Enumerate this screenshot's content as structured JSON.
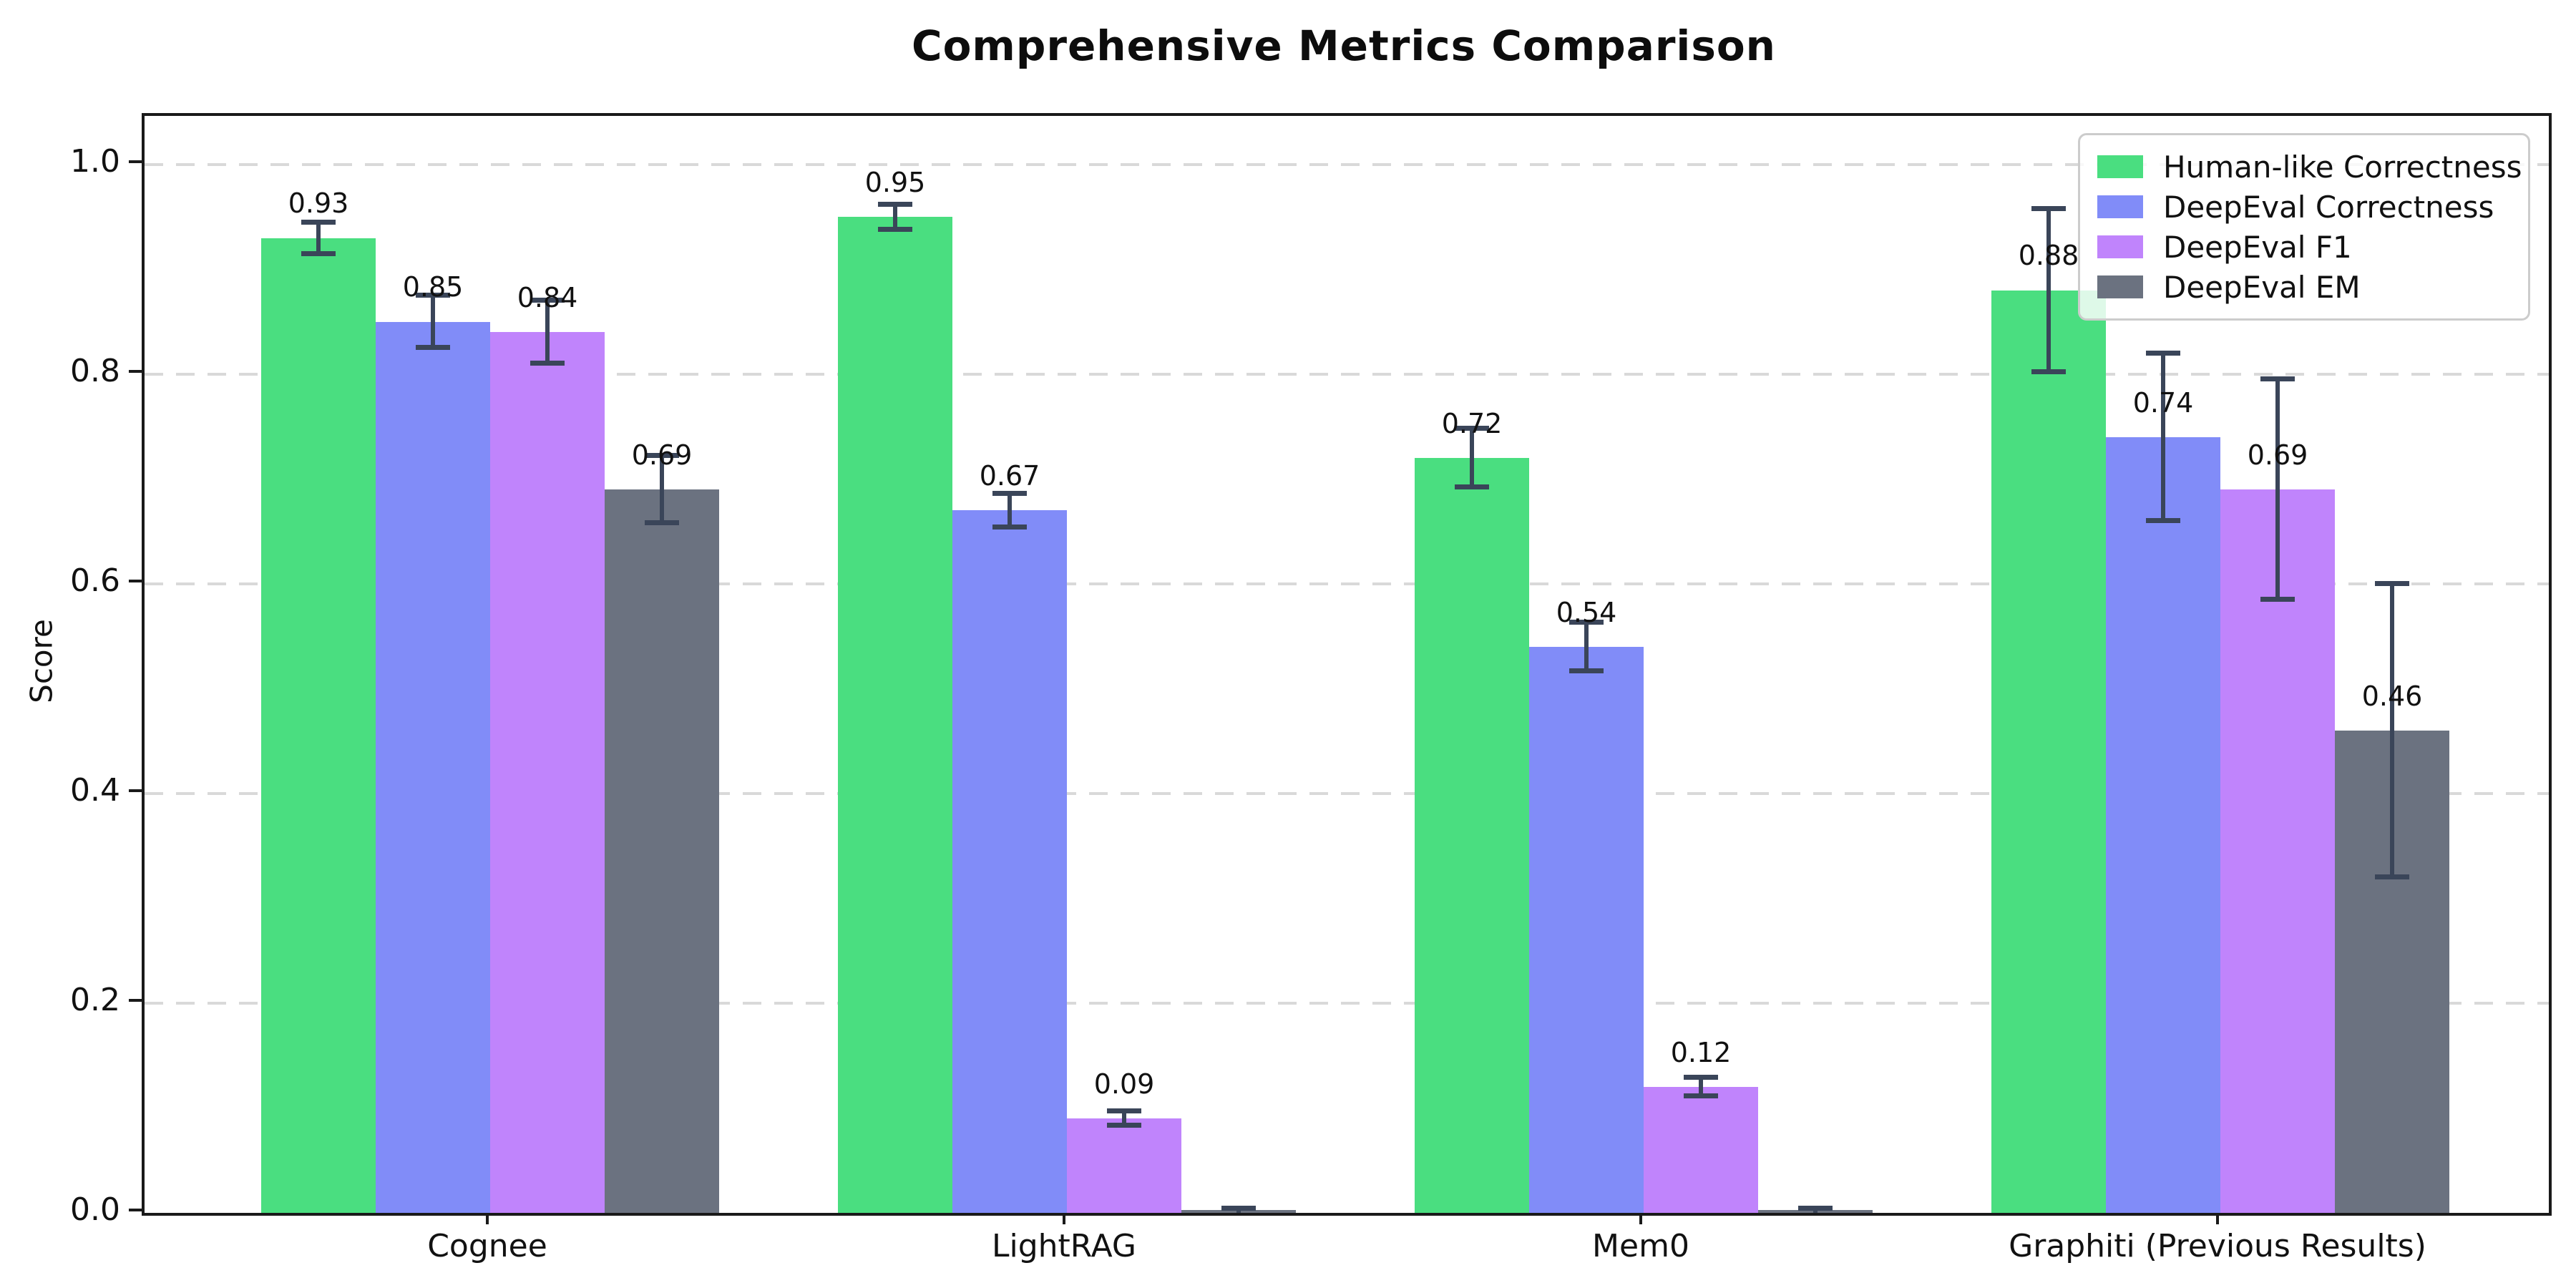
{
  "chart_data": {
    "type": "bar",
    "title": "Comprehensive Metrics Comparison",
    "xlabel": "",
    "ylabel": "Score",
    "categories": [
      "Cognee",
      "LightRAG",
      "Mem0",
      "Graphiti (Previous Results)"
    ],
    "series": [
      {
        "name": "Human-like Correctness",
        "color": "#4ade80",
        "values": [
          0.93,
          0.95,
          0.72,
          0.88
        ],
        "errors": [
          0.015,
          0.012,
          0.028,
          0.078
        ],
        "labels": [
          "0.93",
          "0.95",
          "0.72",
          "0.88"
        ]
      },
      {
        "name": "DeepEval Correctness",
        "color": "#818cf8",
        "values": [
          0.85,
          0.67,
          0.54,
          0.74
        ],
        "errors": [
          0.025,
          0.016,
          0.023,
          0.08
        ],
        "labels": [
          "0.85",
          "0.67",
          "0.54",
          "0.74"
        ]
      },
      {
        "name": "DeepEval F1",
        "color": "#c084fc",
        "values": [
          0.84,
          0.09,
          0.12,
          0.69
        ],
        "errors": [
          0.03,
          0.007,
          0.009,
          0.105
        ],
        "labels": [
          "0.84",
          "0.09",
          "0.12",
          "0.69"
        ]
      },
      {
        "name": "DeepEval EM",
        "color": "#6b7280",
        "values": [
          0.69,
          0.0,
          0.0,
          0.46
        ],
        "errors": [
          0.032,
          0.004,
          0.004,
          0.14
        ],
        "labels": [
          "0.69",
          "",
          "",
          "0.46"
        ]
      }
    ],
    "yticks": [
      "0.0",
      "0.2",
      "0.4",
      "0.6",
      "0.8",
      "1.0"
    ],
    "ylim": [
      0,
      1.05
    ],
    "grid": "horizontal dashed",
    "legend_position": "upper right",
    "colors": {
      "error_bar": "#3a4559",
      "gridline": "#d9d9d9",
      "spine": "#1a1a1a",
      "background": "#ffffff",
      "text": "#111111"
    }
  }
}
